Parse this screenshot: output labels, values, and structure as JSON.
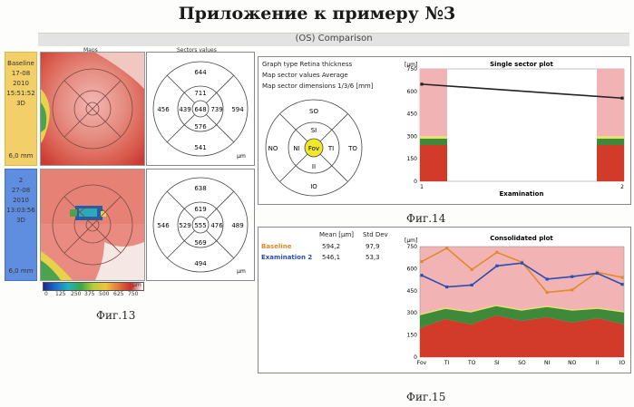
{
  "title": "Приложение к примеру №3",
  "subtitle": "(OS) Comparison",
  "headers": {
    "maps": "Maps",
    "sectors": "Sectors values"
  },
  "baseline_side": {
    "label": "Baseline",
    "date": "17-08",
    "year": "2010",
    "time": "15:51:52",
    "mode": "3D",
    "size": "6,0 mm"
  },
  "exam2_side": {
    "label": "2",
    "date": "27-08",
    "year": "2010",
    "time": "13:03:56",
    "mode": "3D",
    "size": "6,0 mm"
  },
  "colorbar": {
    "ticks": [
      "0",
      "125",
      "250",
      "375",
      "500",
      "625",
      "750"
    ],
    "unit": "μm"
  },
  "sectors_top": {
    "outer_top": "644",
    "outer_left": "456",
    "outer_right": "594",
    "outer_bottom": "541",
    "inner_top": "711",
    "inner_left": "439",
    "center": "648",
    "inner_right": "739",
    "inner_bottom": "576",
    "unit": "μm"
  },
  "sectors_bottom": {
    "outer_top": "638",
    "outer_left": "546",
    "outer_right": "489",
    "outer_bottom": "494",
    "inner_top": "619",
    "inner_left": "529",
    "center": "555",
    "inner_right": "476",
    "inner_bottom": "569",
    "unit": "μm"
  },
  "fig13": "Фиг.13",
  "fig14": "Фиг.14",
  "fig15": "Фиг.15",
  "fig14_panel": {
    "line1": "Graph type Retina thickness",
    "line2": "Map sector values Average",
    "line3": "Map sector dimensions 1/3/6 [mm]",
    "sector_labels": {
      "so": "SO",
      "si": "SI",
      "no": "NO",
      "ni": "NI",
      "fov": "Fov",
      "ti": "TI",
      "to": "TO",
      "ii": "II",
      "io": "IO"
    }
  },
  "fig15_panel": {
    "col_mean": "Mean [μm]",
    "col_std": "Std Dev",
    "rows": [
      {
        "name": "Baseline",
        "mean": "594,2",
        "std": "97,9",
        "color": "#e08a2a"
      },
      {
        "name": "Examination 2",
        "mean": "546,1",
        "std": "53,3",
        "color": "#2a4fb0"
      }
    ]
  },
  "chart_data": [
    {
      "type": "line",
      "title": "Single sector plot",
      "ylabel": "[μm]",
      "xlabel": "Examination",
      "x": [
        1,
        2
      ],
      "ylim": [
        0,
        750
      ],
      "yticks": [
        "0",
        "150",
        "300",
        "450",
        "600",
        "750"
      ],
      "xticks": [
        "1",
        "2"
      ],
      "series": [
        {
          "values": [
            648,
            555
          ]
        }
      ]
    },
    {
      "type": "line",
      "title": "Consolidated plot",
      "ylabel": "[μm]",
      "categories": [
        "Fov",
        "TI",
        "TO",
        "SI",
        "SO",
        "NI",
        "NO",
        "II",
        "IO"
      ],
      "ylim": [
        0,
        750
      ],
      "yticks": [
        "0",
        "150",
        "300",
        "450",
        "600",
        "750"
      ],
      "series": [
        {
          "values": [
            648,
            739,
            594,
            711,
            644,
            439,
            456,
            576,
            541
          ],
          "color": "#e08a2a"
        },
        {
          "values": [
            555,
            476,
            489,
            619,
            638,
            529,
            546,
            569,
            494
          ],
          "color": "#2a4fb0"
        }
      ]
    }
  ]
}
